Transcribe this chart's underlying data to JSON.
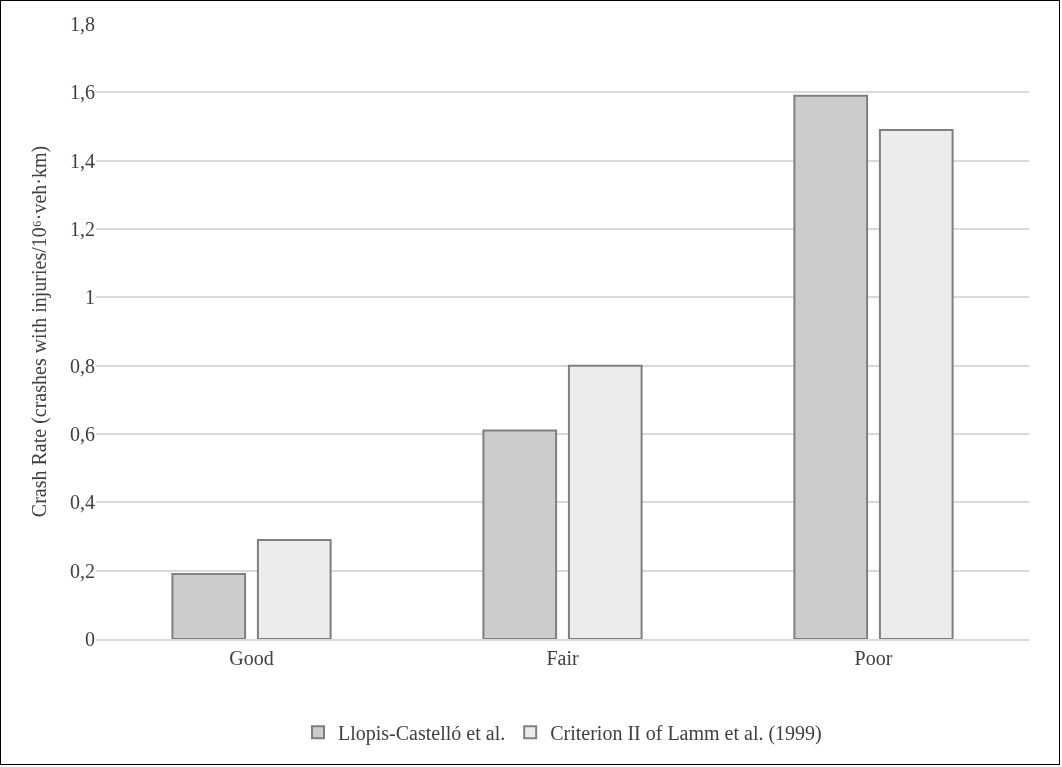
{
  "chart_data": {
    "type": "bar",
    "ylabel": "Crash Rate (crashes with injuries/10⁶·veh·km)",
    "categories": [
      "Good",
      "Fair",
      "Poor"
    ],
    "series": [
      {
        "name": "Llopis-Castelló et al.",
        "color": "#cccccc",
        "values": [
          0.19,
          0.61,
          1.59
        ]
      },
      {
        "name": "Criterion II of Lamm et al. (1999)",
        "color": "#ececec",
        "values": [
          0.29,
          0.8,
          1.49
        ]
      }
    ],
    "ylim": [
      0,
      1.8
    ],
    "yticks": [
      0,
      {
        "value": 0.2,
        "label": "0,2"
      },
      {
        "value": 0.4,
        "label": "0,4"
      },
      {
        "value": 0.6,
        "label": "0,6"
      },
      {
        "value": 0.8,
        "label": "0,8"
      },
      1,
      {
        "value": 1.2,
        "label": "1,2"
      },
      {
        "value": 1.4,
        "label": "1,4"
      },
      {
        "value": 1.6,
        "label": "1,6"
      },
      {
        "value": 1.8,
        "label": "1,8"
      }
    ],
    "grid": "y",
    "legend": "bottom"
  }
}
